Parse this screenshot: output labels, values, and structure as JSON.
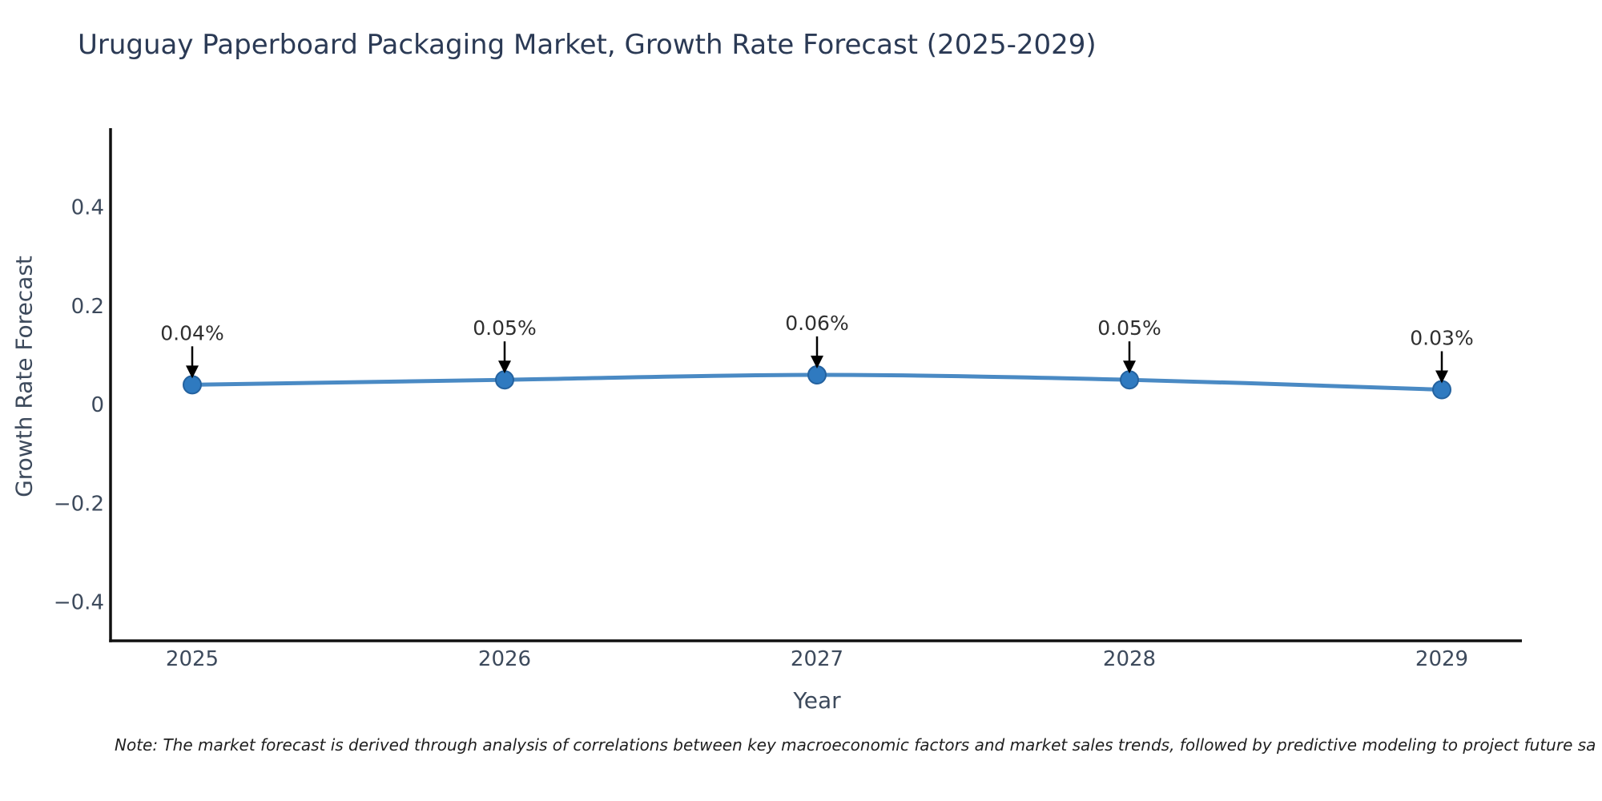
{
  "page": {
    "background_color": "#ffffff"
  },
  "chart_data": {
    "type": "line",
    "title": "Uruguay Paperboard Packaging Market, Growth Rate Forecast (2025-2029)",
    "xlabel": "Year",
    "ylabel": "Growth Rate Forecast",
    "categories": [
      "2025",
      "2026",
      "2027",
      "2028",
      "2029"
    ],
    "x": [
      2025,
      2026,
      2027,
      2028,
      2029
    ],
    "series": [
      {
        "name": "Growth Rate Forecast",
        "values": [
          0.04,
          0.05,
          0.06,
          0.05,
          0.03
        ],
        "point_labels": [
          "0.04%",
          "0.05%",
          "0.06%",
          "0.05%",
          "0.03%"
        ]
      }
    ],
    "yticks": [
      0.4,
      0.2,
      0,
      -0.2,
      -0.4
    ],
    "ytick_labels": [
      "0.4",
      "0.2",
      "0",
      "−0.2",
      "−0.4"
    ],
    "ylim": [
      -0.48,
      0.56
    ],
    "grid": false,
    "legend": false,
    "annotations_have_arrows": true,
    "note": "Note: The market forecast is derived through analysis of correlations between key macroeconomic factors and market sales trends, followed by predictive modeling to project future sa",
    "colors": {
      "line": "#4a8ac4",
      "marker_fill": "#2f7ac0",
      "marker_edge": "#24629f",
      "arrow": "#000000",
      "axis_spine": "#111111",
      "title_text": "#2b3a55",
      "tick_text": "#3d4a5c",
      "annotation_text": "#2f2f2f",
      "note_text": "#1f1f1f"
    }
  }
}
